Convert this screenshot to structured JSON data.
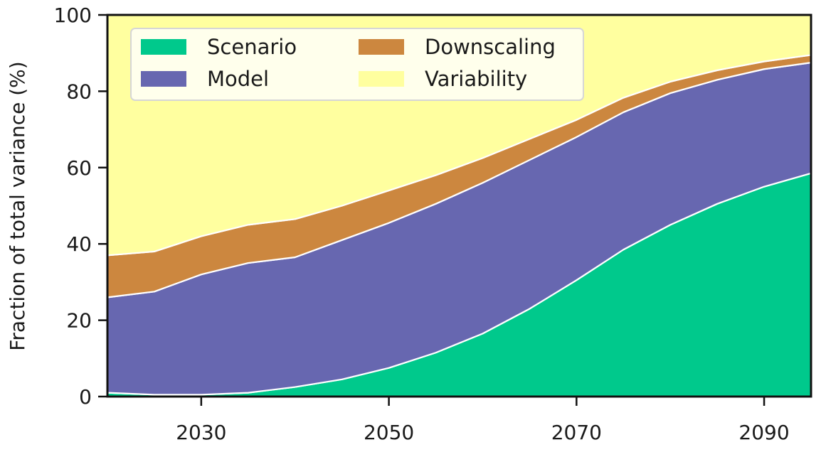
{
  "chart_data": {
    "type": "area",
    "stacked": true,
    "ylabel": "Fraction of total variance (%)",
    "xlabel": "",
    "xlim": [
      2020,
      2095
    ],
    "ylim": [
      0,
      100
    ],
    "xticks": [
      2030,
      2050,
      2070,
      2090
    ],
    "yticks": [
      0,
      20,
      40,
      60,
      80,
      100
    ],
    "legend_position": "upper-left",
    "legend_columns": 2,
    "x": [
      2020,
      2025,
      2030,
      2035,
      2040,
      2045,
      2050,
      2055,
      2060,
      2065,
      2070,
      2075,
      2080,
      2085,
      2090,
      2095
    ],
    "series": [
      {
        "name": "Scenario",
        "color": "#00c98c",
        "values": [
          1.0,
          0.5,
          0.5,
          1.0,
          2.5,
          4.5,
          7.5,
          11.5,
          16.5,
          23.0,
          30.5,
          38.5,
          45.0,
          50.5,
          55.0,
          58.5
        ]
      },
      {
        "name": "Model",
        "color": "#6767b0",
        "values": [
          25.0,
          27.0,
          31.5,
          34.0,
          34.0,
          36.5,
          38.0,
          39.0,
          39.5,
          39.0,
          37.5,
          36.0,
          34.5,
          32.5,
          30.8,
          29.0
        ]
      },
      {
        "name": "Downscaling",
        "color": "#cc873f",
        "values": [
          11.0,
          10.5,
          10.0,
          10.0,
          10.0,
          9.0,
          8.5,
          7.5,
          6.5,
          5.5,
          4.5,
          3.8,
          3.0,
          2.5,
          2.0,
          2.0
        ]
      },
      {
        "name": "Variability",
        "color": "#ffff9f",
        "values": [
          63.0,
          62.0,
          58.0,
          55.0,
          53.5,
          50.0,
          46.0,
          42.0,
          37.5,
          32.5,
          27.5,
          21.7,
          17.5,
          14.5,
          12.2,
          10.5
        ]
      }
    ]
  }
}
